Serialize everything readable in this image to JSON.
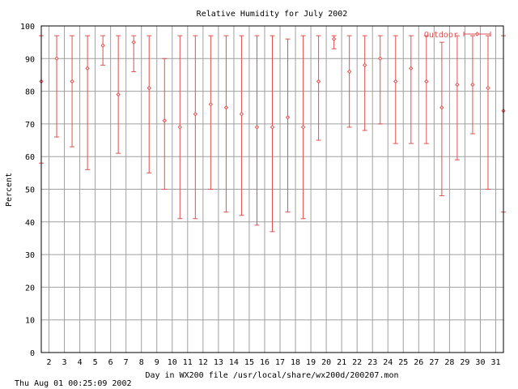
{
  "chart_data": {
    "type": "scatter",
    "title": "Relative Humidity for July 2002",
    "xlabel": "Day in WX200 file /usr/local/share/wx200d/200207.mon",
    "ylabel": "Percent",
    "ylim": [
      0,
      100
    ],
    "xlim": [
      1.5,
      31.5
    ],
    "xticks": [
      2,
      3,
      4,
      5,
      6,
      7,
      8,
      9,
      10,
      11,
      12,
      13,
      14,
      15,
      16,
      17,
      18,
      19,
      20,
      21,
      22,
      23,
      24,
      25,
      26,
      27,
      28,
      29,
      30,
      31
    ],
    "yticks": [
      0,
      10,
      20,
      30,
      40,
      50,
      60,
      70,
      80,
      90,
      100
    ],
    "grid": true,
    "legend_position": "top-right",
    "series": [
      {
        "name": "Outdoor",
        "color": "#e05050",
        "style": "errorbars",
        "points": [
          {
            "x": 1.5,
            "y": 83,
            "low": 58,
            "high": 97
          },
          {
            "x": 2.5,
            "y": 90,
            "low": 66,
            "high": 97
          },
          {
            "x": 3.5,
            "y": 83,
            "low": 63,
            "high": 97
          },
          {
            "x": 4.5,
            "y": 87,
            "low": 56,
            "high": 97
          },
          {
            "x": 5.5,
            "y": 94,
            "low": 88,
            "high": 97
          },
          {
            "x": 6.5,
            "y": 79,
            "low": 61,
            "high": 97
          },
          {
            "x": 7.5,
            "y": 95,
            "low": 86,
            "high": 97
          },
          {
            "x": 8.5,
            "y": 81,
            "low": 55,
            "high": 97
          },
          {
            "x": 9.5,
            "y": 71,
            "low": 50,
            "high": 90
          },
          {
            "x": 10.5,
            "y": 69,
            "low": 41,
            "high": 97
          },
          {
            "x": 11.5,
            "y": 73,
            "low": 41,
            "high": 97
          },
          {
            "x": 12.5,
            "y": 76,
            "low": 50,
            "high": 97
          },
          {
            "x": 13.5,
            "y": 75,
            "low": 43,
            "high": 97
          },
          {
            "x": 14.5,
            "y": 73,
            "low": 42,
            "high": 97
          },
          {
            "x": 15.5,
            "y": 69,
            "low": 39,
            "high": 97
          },
          {
            "x": 16.5,
            "y": 69,
            "low": 37,
            "high": 97
          },
          {
            "x": 17.5,
            "y": 72,
            "low": 43,
            "high": 96
          },
          {
            "x": 18.5,
            "y": 69,
            "low": 41,
            "high": 97
          },
          {
            "x": 19.5,
            "y": 83,
            "low": 65,
            "high": 97
          },
          {
            "x": 20.5,
            "y": 96,
            "low": 93,
            "high": 97
          },
          {
            "x": 21.5,
            "y": 86,
            "low": 69,
            "high": 97
          },
          {
            "x": 22.5,
            "y": 88,
            "low": 68,
            "high": 97
          },
          {
            "x": 23.5,
            "y": 90,
            "low": 70,
            "high": 97
          },
          {
            "x": 24.5,
            "y": 83,
            "low": 64,
            "high": 97
          },
          {
            "x": 25.5,
            "y": 87,
            "low": 64,
            "high": 97
          },
          {
            "x": 26.5,
            "y": 83,
            "low": 64,
            "high": 97
          },
          {
            "x": 27.5,
            "y": 75,
            "low": 48,
            "high": 95
          },
          {
            "x": 28.5,
            "y": 82,
            "low": 59,
            "high": 97
          },
          {
            "x": 29.5,
            "y": 82,
            "low": 67,
            "high": 97
          },
          {
            "x": 30.5,
            "y": 81,
            "low": 50,
            "high": 97
          },
          {
            "x": 31.5,
            "y": 74,
            "low": 43,
            "high": 97
          }
        ]
      }
    ]
  },
  "footer_timestamp": "Thu Aug 01 00:25:09 2002"
}
